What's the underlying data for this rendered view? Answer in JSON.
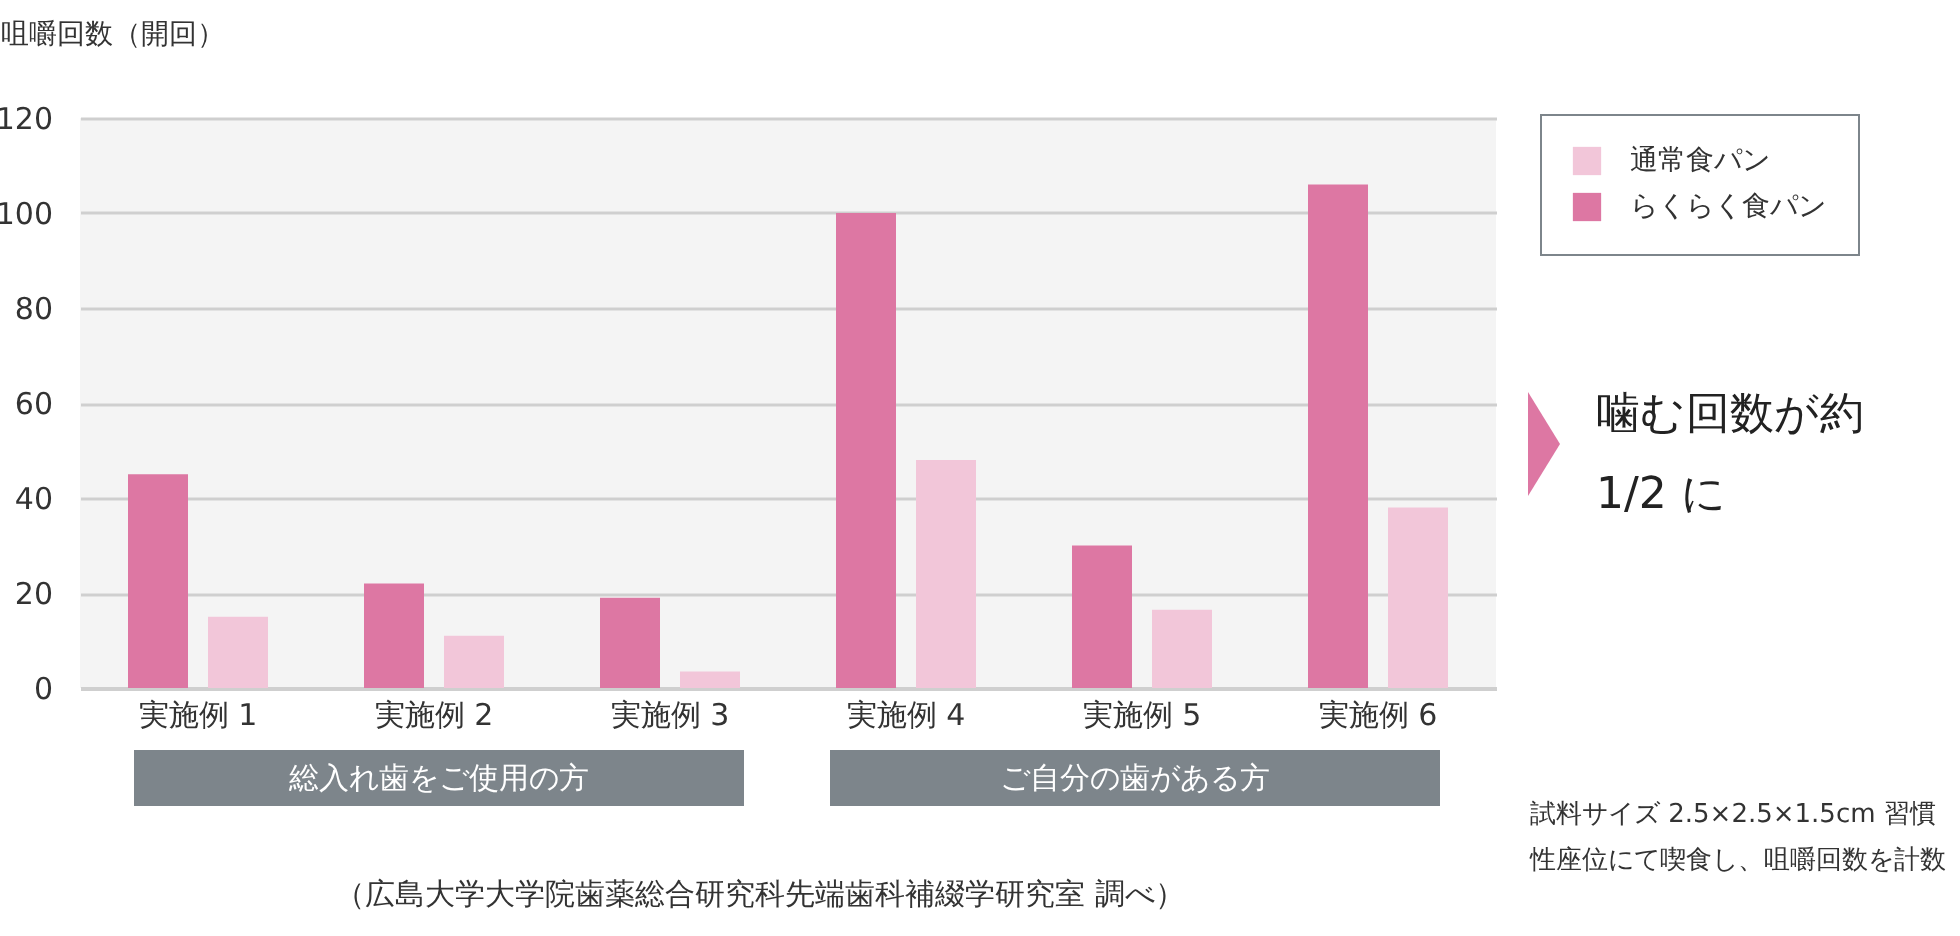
{
  "chart_data": {
    "type": "bar",
    "ylabel": "咀嚼回数（開回）",
    "categories": [
      "実施例 1",
      "実施例 2",
      "実施例 3",
      "実施例 4",
      "実施例 5",
      "実施例 6"
    ],
    "series": [
      {
        "name": "らくらく食パン",
        "color": "#dd77a3",
        "values": [
          45,
          22,
          19,
          100,
          30,
          106
        ]
      },
      {
        "name": "通常食パン",
        "color": "#f2c6d9",
        "values": [
          15,
          11,
          3.5,
          48,
          16.5,
          38
        ]
      }
    ],
    "ylim": [
      0,
      120
    ],
    "yticks": [
      0,
      20,
      40,
      60,
      80,
      100,
      120
    ],
    "grid": "y",
    "legend": "top right",
    "annotations": [
      "総入れ歯をご使用の方",
      "ご自分の歯がある方",
      "噛む回数が約 1/2 に",
      "（広島大学大学院歯薬総合研究科先端歯科補綴学研究室 調べ）",
      "試料サイズ 2.5×2.5×1.5cm 習慣性座位にて喫食し、咀嚼回数を計数"
    ]
  }
}
